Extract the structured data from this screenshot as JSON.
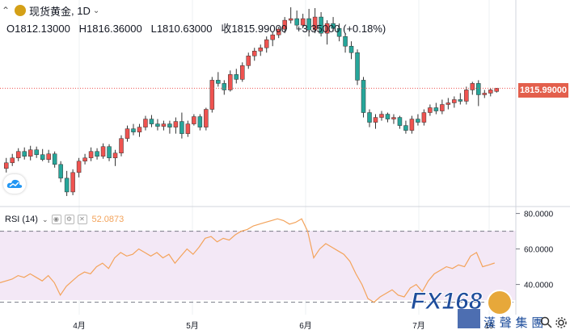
{
  "header": {
    "symbol": "现货黄金",
    "interval": "1D",
    "o_label": "O",
    "o_value": "1812.13000",
    "h_label": "H",
    "h_value": "1816.36000",
    "l_label": "L",
    "l_value": "1810.63000",
    "c_label": "收",
    "c_value": "1815.99000",
    "change": "+3.35000",
    "change_pct": "(+0.18%)"
  },
  "price_tag": "1815.99000",
  "rsi": {
    "label": "RSI (14)",
    "value": "52.0873"
  },
  "logo": {
    "brand": "FX168",
    "tagline": "漢 聲 集 團"
  },
  "colors": {
    "up": "#ef5350",
    "down": "#26a69a",
    "rsi_line": "#f3a35b",
    "rsi_band": "#f3e8f6"
  },
  "chart_data": [
    {
      "type": "candlestick",
      "title": "现货黄金",
      "interval": "1D",
      "x_ticks": [
        "4月",
        "5月",
        "6月",
        "7月",
        "19"
      ],
      "ylim": [
        1670,
        1925
      ],
      "last_price": 1815.99,
      "candles": [
        [
          1717,
          1730,
          1712,
          1724
        ],
        [
          1724,
          1735,
          1720,
          1730
        ],
        [
          1730,
          1742,
          1726,
          1738
        ],
        [
          1738,
          1743,
          1728,
          1732
        ],
        [
          1732,
          1745,
          1727,
          1740
        ],
        [
          1740,
          1744,
          1730,
          1734
        ],
        [
          1734,
          1741,
          1726,
          1728
        ],
        [
          1728,
          1740,
          1724,
          1735
        ],
        [
          1735,
          1738,
          1718,
          1722
        ],
        [
          1722,
          1726,
          1700,
          1705
        ],
        [
          1705,
          1714,
          1683,
          1688
        ],
        [
          1688,
          1716,
          1684,
          1712
        ],
        [
          1712,
          1730,
          1706,
          1726
        ],
        [
          1726,
          1735,
          1722,
          1730
        ],
        [
          1730,
          1743,
          1726,
          1738
        ],
        [
          1738,
          1742,
          1728,
          1732
        ],
        [
          1732,
          1748,
          1729,
          1744
        ],
        [
          1744,
          1747,
          1726,
          1730
        ],
        [
          1730,
          1740,
          1720,
          1736
        ],
        [
          1736,
          1758,
          1732,
          1754
        ],
        [
          1754,
          1770,
          1750,
          1766
        ],
        [
          1766,
          1772,
          1758,
          1762
        ],
        [
          1762,
          1772,
          1756,
          1768
        ],
        [
          1768,
          1782,
          1764,
          1778
        ],
        [
          1778,
          1783,
          1768,
          1772
        ],
        [
          1772,
          1778,
          1764,
          1769
        ],
        [
          1769,
          1776,
          1764,
          1772
        ],
        [
          1772,
          1776,
          1760,
          1768
        ],
        [
          1768,
          1780,
          1760,
          1775
        ],
        [
          1775,
          1786,
          1754,
          1760
        ],
        [
          1760,
          1776,
          1756,
          1772
        ],
        [
          1772,
          1784,
          1770,
          1781
        ],
        [
          1781,
          1784,
          1764,
          1768
        ],
        [
          1768,
          1792,
          1764,
          1790
        ],
        [
          1790,
          1830,
          1786,
          1826
        ],
        [
          1826,
          1836,
          1818,
          1822
        ],
        [
          1822,
          1826,
          1808,
          1814
        ],
        [
          1814,
          1838,
          1812,
          1833
        ],
        [
          1833,
          1840,
          1822,
          1827
        ],
        [
          1827,
          1848,
          1824,
          1844
        ],
        [
          1844,
          1860,
          1840,
          1856
        ],
        [
          1856,
          1866,
          1850,
          1862
        ],
        [
          1862,
          1870,
          1856,
          1866
        ],
        [
          1866,
          1880,
          1860,
          1876
        ],
        [
          1876,
          1885,
          1868,
          1882
        ],
        [
          1882,
          1892,
          1878,
          1889
        ],
        [
          1889,
          1904,
          1884,
          1900
        ],
        [
          1900,
          1916,
          1896,
          1902
        ],
        [
          1902,
          1912,
          1890,
          1894
        ],
        [
          1894,
          1908,
          1890,
          1902
        ],
        [
          1902,
          1914,
          1880,
          1888
        ],
        [
          1888,
          1915,
          1884,
          1904
        ],
        [
          1904,
          1910,
          1880,
          1884
        ],
        [
          1884,
          1900,
          1870,
          1896
        ],
        [
          1896,
          1904,
          1886,
          1890
        ],
        [
          1890,
          1896,
          1874,
          1880
        ],
        [
          1880,
          1884,
          1860,
          1868
        ],
        [
          1868,
          1874,
          1852,
          1860
        ],
        [
          1860,
          1864,
          1820,
          1826
        ],
        [
          1826,
          1830,
          1780,
          1786
        ],
        [
          1786,
          1790,
          1768,
          1774
        ],
        [
          1774,
          1784,
          1766,
          1780
        ],
        [
          1780,
          1788,
          1776,
          1784
        ],
        [
          1784,
          1786,
          1774,
          1778
        ],
        [
          1778,
          1784,
          1772,
          1780
        ],
        [
          1780,
          1782,
          1766,
          1770
        ],
        [
          1770,
          1776,
          1760,
          1764
        ],
        [
          1764,
          1782,
          1760,
          1778
        ],
        [
          1778,
          1784,
          1770,
          1774
        ],
        [
          1774,
          1790,
          1770,
          1786
        ],
        [
          1786,
          1796,
          1782,
          1792
        ],
        [
          1792,
          1798,
          1784,
          1788
        ],
        [
          1788,
          1802,
          1784,
          1796
        ],
        [
          1796,
          1804,
          1790,
          1798
        ],
        [
          1798,
          1806,
          1792,
          1802
        ],
        [
          1802,
          1810,
          1796,
          1800
        ],
        [
          1800,
          1818,
          1796,
          1814
        ],
        [
          1814,
          1824,
          1808,
          1822
        ],
        [
          1822,
          1826,
          1794,
          1808
        ],
        [
          1808,
          1814,
          1804,
          1810
        ],
        [
          1810,
          1816,
          1806,
          1814
        ],
        [
          1812.13,
          1816.36,
          1810.63,
          1815.99
        ]
      ]
    },
    {
      "type": "line",
      "title": "RSI (14)",
      "ylim": [
        23,
        83
      ],
      "y_ticks": [
        "80.0000",
        "60.0000",
        "40.0000"
      ],
      "bands": [
        70,
        30
      ],
      "values": [
        41,
        42,
        43,
        45,
        44,
        46,
        44,
        42,
        45,
        41,
        34,
        39,
        42,
        45,
        47,
        46,
        50,
        52,
        49,
        55,
        58,
        56,
        57,
        60,
        58,
        56,
        58,
        55,
        57,
        52,
        56,
        60,
        57,
        61,
        66,
        67,
        64,
        66,
        65,
        68,
        70,
        71,
        73,
        74,
        75,
        76,
        77,
        76,
        74,
        75,
        77,
        70,
        55,
        60,
        63,
        61,
        59,
        57,
        53,
        46,
        40,
        32,
        30,
        33,
        35,
        37,
        34,
        33,
        38,
        40,
        36,
        42,
        46,
        48,
        50,
        49,
        51,
        50,
        56,
        58,
        50,
        51,
        52.09
      ]
    }
  ]
}
